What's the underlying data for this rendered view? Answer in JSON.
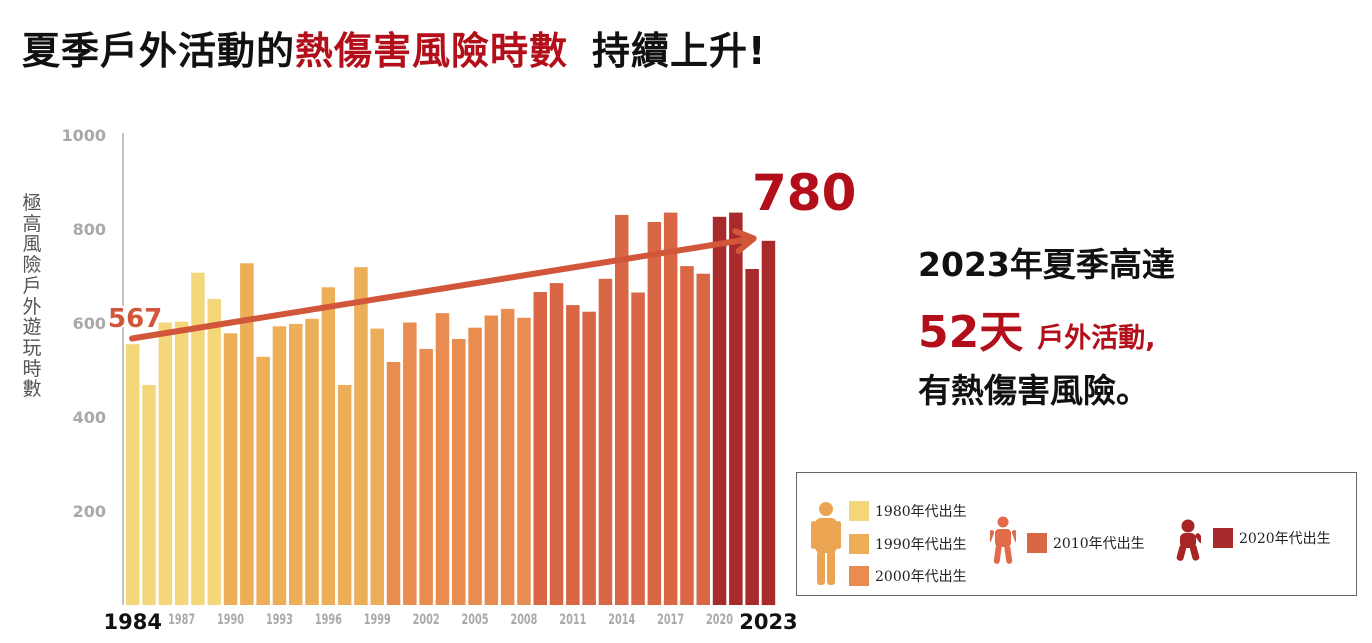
{
  "headline": {
    "part1": "夏季戶外活動的",
    "part2": "熱傷害風險時數",
    "part3": "持續上升!"
  },
  "callout": {
    "line1": "2023年夏季高達",
    "line2_big": "52天",
    "line2_small": "戶外活動,",
    "line3": "有熱傷害風險。"
  },
  "legend": {
    "items": [
      {
        "label": "1980年代出生",
        "color": "#f3d77a"
      },
      {
        "label": "1990年代出生",
        "color": "#edae58"
      },
      {
        "label": "2000年代出生",
        "color": "#e98c50"
      },
      {
        "label": "2010年代出生",
        "color": "#d96645"
      },
      {
        "label": "2020年代出生",
        "color": "#a82a2a"
      }
    ],
    "icons": {
      "adult": {
        "name": "adult-person-icon",
        "color": "#eba452"
      },
      "child": {
        "name": "child-person-icon",
        "color": "#e26b4a"
      },
      "toddler": {
        "name": "toddler-person-icon",
        "color": "#a92424"
      }
    }
  },
  "chart_data": {
    "type": "bar",
    "title": "",
    "ylabel": "極高風險戶外遊玩時數",
    "xlabel": "",
    "ylim": [
      0,
      1000
    ],
    "yticks": [
      200,
      400,
      600,
      800,
      1000
    ],
    "grid": false,
    "legend_position": "bottom-right",
    "categories": [
      "1984",
      "1985",
      "1986",
      "1987",
      "1988",
      "1989",
      "1990",
      "1991",
      "1992",
      "1993",
      "1994",
      "1995",
      "1996",
      "1997",
      "1998",
      "1999",
      "2000",
      "2001",
      "2002",
      "2003",
      "2004",
      "2005",
      "2006",
      "2007",
      "2008",
      "2009",
      "2010",
      "2011",
      "2012",
      "2013",
      "2014",
      "2015",
      "2016",
      "2017",
      "2018",
      "2019",
      "2020",
      "2021",
      "2022",
      "2023"
    ],
    "values": [
      555,
      468,
      601,
      603,
      707,
      651,
      578,
      727,
      528,
      593,
      598,
      609,
      676,
      468,
      719,
      588,
      517,
      601,
      545,
      621,
      566,
      590,
      616,
      630,
      611,
      666,
      685,
      638,
      624,
      694,
      830,
      665,
      815,
      835,
      721,
      705,
      826,
      835,
      715,
      775
    ],
    "cohorts": [
      0,
      0,
      0,
      0,
      0,
      0,
      1,
      1,
      1,
      1,
      1,
      1,
      1,
      1,
      1,
      1,
      2,
      2,
      2,
      2,
      2,
      2,
      2,
      2,
      2,
      3,
      3,
      3,
      3,
      3,
      3,
      3,
      3,
      3,
      3,
      3,
      4,
      4,
      4,
      4
    ],
    "cohort_colors": [
      "#f3d77a",
      "#edae58",
      "#e98c50",
      "#d96645",
      "#a82a2a"
    ],
    "xtick_labels": [
      {
        "label": "1984",
        "index": 0,
        "emphasis": true
      },
      {
        "label": "1987",
        "index": 3
      },
      {
        "label": "1990",
        "index": 6
      },
      {
        "label": "1993",
        "index": 9
      },
      {
        "label": "1996",
        "index": 12
      },
      {
        "label": "1999",
        "index": 15
      },
      {
        "label": "2002",
        "index": 18
      },
      {
        "label": "2005",
        "index": 21
      },
      {
        "label": "2008",
        "index": 24
      },
      {
        "label": "2011",
        "index": 27
      },
      {
        "label": "2014",
        "index": 30
      },
      {
        "label": "2017",
        "index": 33
      },
      {
        "label": "2020",
        "index": 36
      },
      {
        "label": "2023",
        "index": 39,
        "emphasis": true
      }
    ],
    "trend": {
      "start_value": 567,
      "end_value": 780,
      "start_label": "567",
      "end_label": "780",
      "color": "#d2563a",
      "label_color": "#b30f1a"
    }
  }
}
